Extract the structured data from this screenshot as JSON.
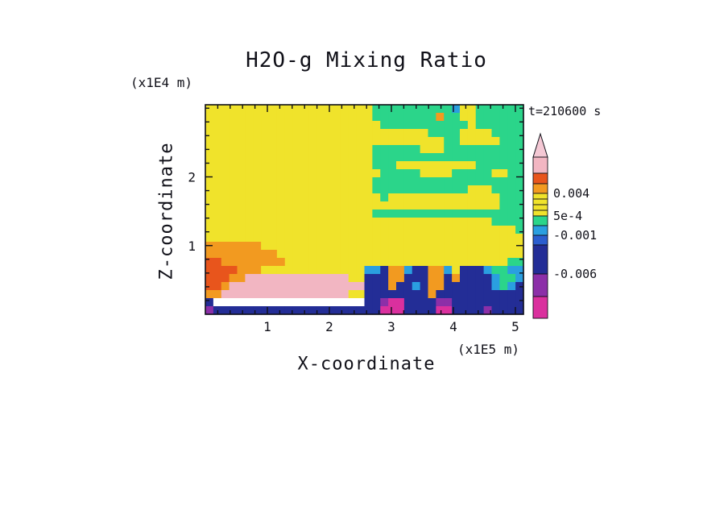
{
  "chart_data": {
    "type": "heatmap",
    "title": "H2O-g Mixing Ratio",
    "time_label": "t=210600 s",
    "xlabel": "X-coordinate",
    "x_unit": "(x1E5 m)",
    "ylabel": "Z-coordinate",
    "y_unit": "(x1E4 m)",
    "x_ticks": [
      1,
      2,
      3,
      4,
      5
    ],
    "y_ticks": [
      1,
      2
    ],
    "x_range": [
      0,
      5.13
    ],
    "y_range": [
      0,
      3.05
    ],
    "grid": false,
    "legend_position": "right",
    "palette": {
      "Y": "#f0e32b",
      "G": "#2bd58a",
      "O": "#f29a20",
      "R": "#e8551c",
      "P": "#f2b6c2",
      "W": "#ffffff",
      "C": "#2a9fe0",
      "B": "#2b5ecf",
      "N": "#232d96",
      "U": "#8c2fa8",
      "M": "#da309e"
    },
    "rows_top_to_bottom": [
      "YYYYYYYYYYYYYYYYYYYYYGGGGGGGGGGCYYGGGGGG",
      "YYYYYYYYYYYYYYYYYYYYYGGGGGGGGOGGYYGGGGGG",
      "YYYYYYYYYYYYYYYYYYYYYYGGGGGGGGGGGYGGGGGG",
      "YYYYYYYYYYYYYYYYYYYYYYYYYYYYGGGGYYYYGGGG",
      "YYYYYYYYYYYYYYYYYYYYYYYYYYYYYYGGYYYYYGGG",
      "YYYYYYYYYYYYYYYYYYYYYGGGGGGYYYGGGGGGGGGG",
      "YYYYYYYYYYYYYYYYYYYYYGGGGGGGGGGGGGGGGGGG",
      "YYYYYYYYYYYYYYYYYYYYYGGGYYYYYYYYYYGGGGGG",
      "YYYYYYYYYYYYYYYYYYYYYYGGGGGYYYYGGGGGYYGG",
      "YYYYYYYYYYYYYYYYYYYYYGGGGGGGGGGGGGGGGGGG",
      "YYYYYYYYYYYYYYYYYYYYYGGGGGGGGGGGGYYYGGGG",
      "YYYYYYYYYYYYYYYYYYYYYYGYYYYYYYYYYYYYYGGG",
      "YYYYYYYYYYYYYYYYYYYYYYYYYYYYYYYYYYYYYGGG",
      "YYYYYYYYYYYYYYYYYYYYYGGGGGGGGGGGGGGGGGGG",
      "YYYYYYYYYYYYYYYYYYYYYYYYYYYYYYYYYYYYGGGG",
      "YYYYYYYYYYYYYYYYYYYYYYYYYYYYYYYYYYYYYYYG",
      "YYYYYYYYYYYYYYYYYYYYYYYYYYYYYYYYYYYYYYYY",
      "OOOOOOOYYYYYYYYYYYYYYYYYYYYYYYYYYYYYYYYY",
      "OOOOOOOOOYYYYYYYYYYYYYYYYYYYYYYYYYYYYYYY",
      "RROOOOOOOOYYYYYYYYYYYYYYYYYYYYYYYYYYYYGG",
      "RRRROOOYYYYYYYYYYYYYCCNOOCNNOOCYNNNCGGCC",
      "RRROOPPPPPPPPPPPPPYYNNNOONNNOONONNNNCGGC",
      "RROPPPPPPPPPPPPPPPPPNNNONNCNOONNNNNNCGCN",
      "OOPPPPPPPPPPPPPPPPYYNNNNNNNNONNNNNNNNNNN",
      "NWWWWWWWWWWWWWWWWWWWNNUMMNNNNUUNNNNNNNNN",
      "UNNNNNNNNNNNNNNNNNNNNNMMMNNNNMMNNNNUNNNN"
    ],
    "colorbar": {
      "arrow_color": "#f4c8d4",
      "segments": [
        {
          "color": "#f2b6c2",
          "h": 20
        },
        {
          "color": "#e8551c",
          "h": 13
        },
        {
          "color": "#f29a20",
          "h": 12
        },
        {
          "color": "#f0e32b",
          "h": 7
        },
        {
          "color": "#f0e32b",
          "h": 7
        },
        {
          "color": "#f0e32b",
          "h": 7
        },
        {
          "color": "#f0e32b",
          "h": 7
        },
        {
          "color": "#2bd58a",
          "h": 12
        },
        {
          "color": "#2a9fe0",
          "h": 12
        },
        {
          "color": "#2b5ecf",
          "h": 12
        },
        {
          "color": "#232d96",
          "h": 36
        },
        {
          "color": "#8c2fa8",
          "h": 28
        },
        {
          "color": "#da309e",
          "h": 27
        }
      ],
      "labels": [
        {
          "text": "0.004",
          "offset": 45
        },
        {
          "text": "5e-4",
          "offset": 73
        },
        {
          "text": "-0.001",
          "offset": 97
        },
        {
          "text": "-0.006",
          "offset": 145
        }
      ]
    }
  }
}
